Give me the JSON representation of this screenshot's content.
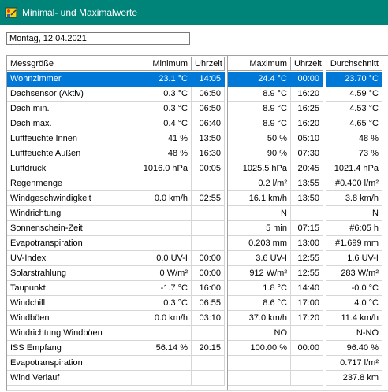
{
  "window": {
    "title": "Minimal- und Maximalwerte",
    "date": "Montag, 12.04.2021"
  },
  "table": {
    "headers": [
      "Messgröße",
      "Minimum",
      "Uhrzeit",
      "Maximum",
      "Uhrzeit",
      "Durchschnitt"
    ],
    "rows": [
      [
        "Wohnzimmer",
        "23.1 °C",
        "14:05",
        "24.4 °C",
        "00:00",
        "23.70 °C"
      ],
      [
        "Dachsensor (Aktiv)",
        "0.3 °C",
        "06:50",
        "8.9 °C",
        "16:20",
        "4.59 °C"
      ],
      [
        "Dach min.",
        "0.3 °C",
        "06:50",
        "8.9 °C",
        "16:25",
        "4.53 °C"
      ],
      [
        "Dach max.",
        "0.4 °C",
        "06:40",
        "8.9 °C",
        "16:20",
        "4.65 °C"
      ],
      [
        "Luftfeuchte Innen",
        "41 %",
        "13:50",
        "50 %",
        "05:10",
        "48 %"
      ],
      [
        "Luftfeuchte Außen",
        "48 %",
        "16:30",
        "90 %",
        "07:30",
        "73 %"
      ],
      [
        "Luftdruck",
        "1016.0 hPa",
        "00:05",
        "1025.5 hPa",
        "20:45",
        "1021.4 hPa"
      ],
      [
        "Regenmenge",
        "",
        "",
        "0.2 l/m²",
        "13:55",
        "#0.400 l/m²"
      ],
      [
        "Windgeschwindigkeit",
        "0.0 km/h",
        "02:55",
        "16.1 km/h",
        "13:50",
        "3.8 km/h"
      ],
      [
        "Windrichtung",
        "",
        "",
        "N",
        "",
        "N"
      ],
      [
        "Sonnenschein-Zeit",
        "",
        "",
        "5 min",
        "07:15",
        "#6:05 h"
      ],
      [
        "Evapotranspiration",
        "",
        "",
        "0.203 mm",
        "13:00",
        "#1.699 mm"
      ],
      [
        "UV-Index",
        "0.0 UV-I",
        "00:00",
        "3.6 UV-I",
        "12:55",
        "1.6 UV-I"
      ],
      [
        "Solarstrahlung",
        "0 W/m²",
        "00:00",
        "912 W/m²",
        "12:55",
        "283 W/m²"
      ],
      [
        "Taupunkt",
        "-1.7 °C",
        "16:00",
        "1.8 °C",
        "14:40",
        "-0.0 °C"
      ],
      [
        "Windchill",
        "0.3 °C",
        "06:55",
        "8.6 °C",
        "17:00",
        "4.0 °C"
      ],
      [
        "Windböen",
        "0.0 km/h",
        "03:10",
        "37.0 km/h",
        "17:20",
        "11.4 km/h"
      ],
      [
        "Windrichtung Windböen",
        "",
        "",
        "NO",
        "",
        "N-NO"
      ],
      [
        "ISS Empfang",
        "56.14 %",
        "20:15",
        "100.00 %",
        "00:00",
        "96.40 %"
      ],
      [
        "Evapotranspiration",
        "",
        "",
        "",
        "",
        "0.717 l/m²"
      ],
      [
        "Wind Verlauf",
        "",
        "",
        "",
        "",
        "237.8 km"
      ]
    ],
    "selected_row": 0
  },
  "colors": {
    "titlebar": "#00847a",
    "selection": "#0078d7"
  },
  "icons": {
    "app": "weather-station-icon"
  }
}
